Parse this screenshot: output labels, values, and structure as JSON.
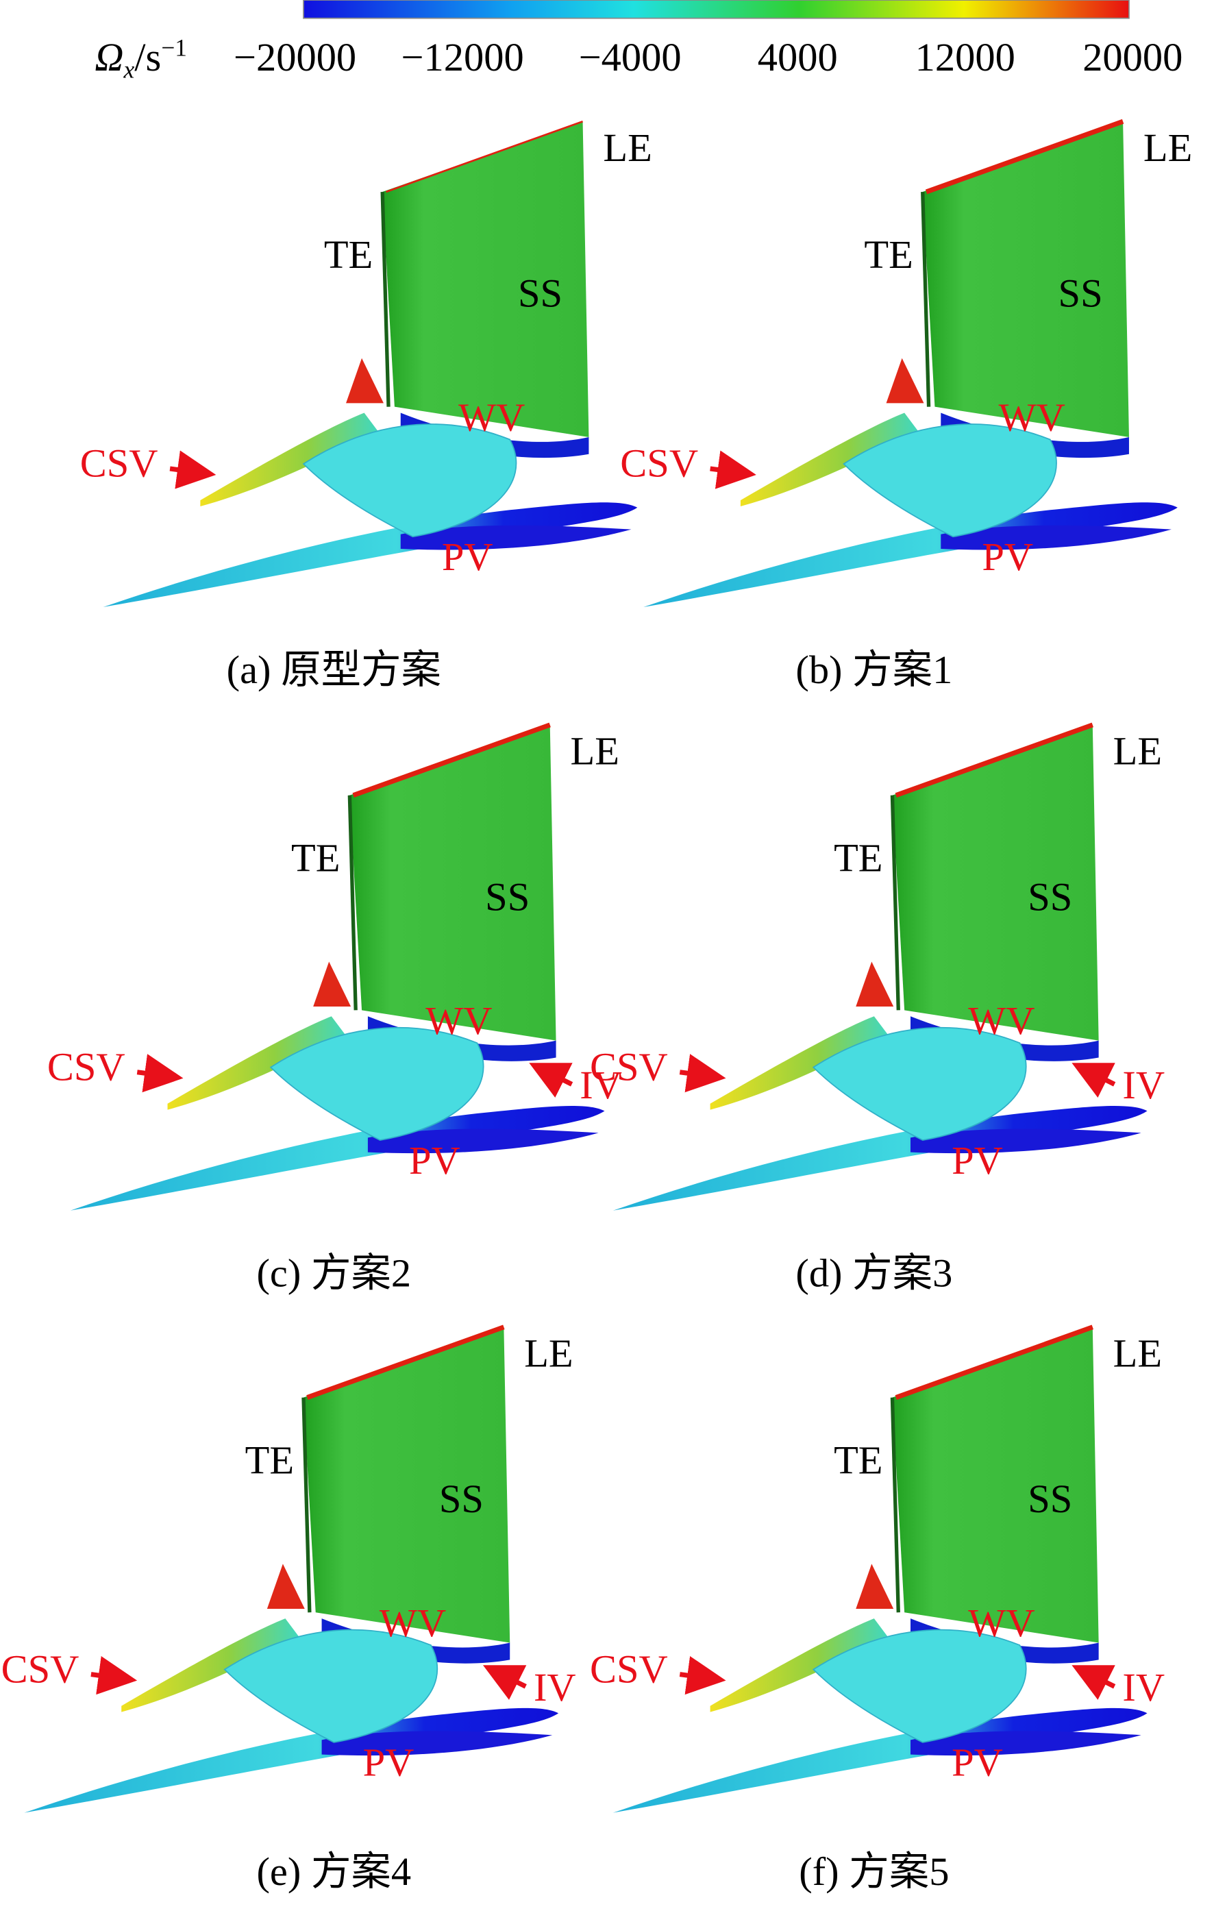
{
  "colorbar": {
    "symbol": "Ω",
    "subscript": "x",
    "unit": "/s",
    "exponent": "−1",
    "lim": [
      -20000,
      20000
    ],
    "ticks": [
      {
        "value": -20000,
        "label": "−20000"
      },
      {
        "value": -12000,
        "label": "−12000"
      },
      {
        "value": -4000,
        "label": "−4000"
      },
      4000,
      12000,
      20000
    ]
  },
  "panels": [
    {
      "caption": "(a) 原型方案",
      "labels": [
        "LE",
        "TE",
        "SS",
        "WV",
        "CSV",
        "PV"
      ]
    },
    {
      "caption": "(b) 方案1",
      "labels": [
        "LE",
        "TE",
        "SS",
        "WV",
        "CSV",
        "PV"
      ]
    },
    {
      "caption": "(c) 方案2",
      "labels": [
        "LE",
        "TE",
        "SS",
        "WV",
        "CSV",
        "PV",
        "IV"
      ]
    },
    {
      "caption": "(d) 方案3",
      "labels": [
        "LE",
        "TE",
        "SS",
        "WV",
        "CSV",
        "PV",
        "IV"
      ]
    },
    {
      "caption": "(e) 方案4",
      "labels": [
        "LE",
        "TE",
        "SS",
        "WV",
        "CSV",
        "PV",
        "IV"
      ]
    },
    {
      "caption": "(f) 方案5",
      "labels": [
        "LE",
        "TE",
        "SS",
        "WV",
        "CSV",
        "PV",
        "IV"
      ]
    }
  ]
}
